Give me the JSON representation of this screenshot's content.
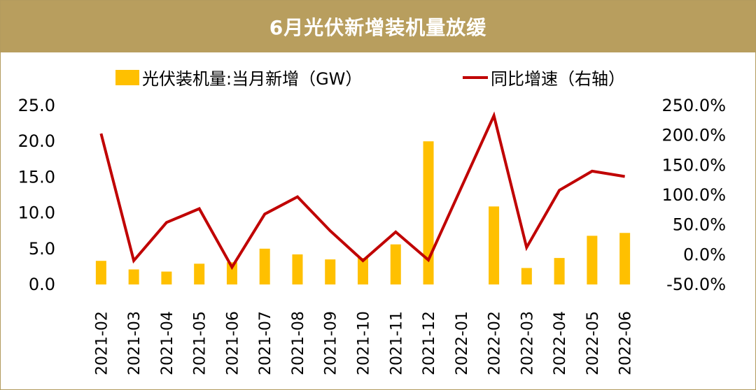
{
  "header": {
    "title": "6月光伏新增装机量放缓"
  },
  "legend": {
    "bar_label": "光伏装机量:当月新增（GW）",
    "line_label": "同比增速（右轴）"
  },
  "colors": {
    "bar": "#ffc000",
    "line": "#c00000",
    "title_bg": "#b89e5e"
  },
  "chart_data": {
    "type": "bar+line",
    "title": "6月光伏新增装机量放缓",
    "categories": [
      "2021-02",
      "2021-03",
      "2021-04",
      "2021-05",
      "2021-06",
      "2021-07",
      "2021-08",
      "2021-09",
      "2021-10",
      "2021-11",
      "2021-12",
      "2022-01",
      "2022-02",
      "2022-03",
      "2022-04",
      "2022-05",
      "2022-06"
    ],
    "series": [
      {
        "name": "光伏装机量:当月新增（GW）",
        "type": "bar",
        "axis": "left",
        "values": [
          3.3,
          2.1,
          1.8,
          2.9,
          3.1,
          5.0,
          4.2,
          3.5,
          3.7,
          5.6,
          20.0,
          null,
          10.9,
          2.3,
          3.7,
          6.8,
          7.2
        ]
      },
      {
        "name": "同比增速（右轴）",
        "type": "line",
        "axis": "right",
        "values": [
          203.0,
          -10.0,
          54.0,
          77.0,
          -21.0,
          68.0,
          97.0,
          40.0,
          -10.0,
          38.0,
          -9.0,
          null,
          233.0,
          12.0,
          108.0,
          140.0,
          131.0
        ]
      }
    ],
    "y_left": {
      "min": 0,
      "max": 25,
      "ticks": [
        "25.0",
        "20.0",
        "15.0",
        "10.0",
        "5.0",
        "0.0"
      ]
    },
    "y_right": {
      "min": -50,
      "max": 250,
      "ticks": [
        "250.0%",
        "200.0%",
        "150.0%",
        "100.0%",
        "50.0%",
        "0.0%",
        "-50.0%"
      ]
    },
    "legend_position": "top",
    "grid": false
  }
}
